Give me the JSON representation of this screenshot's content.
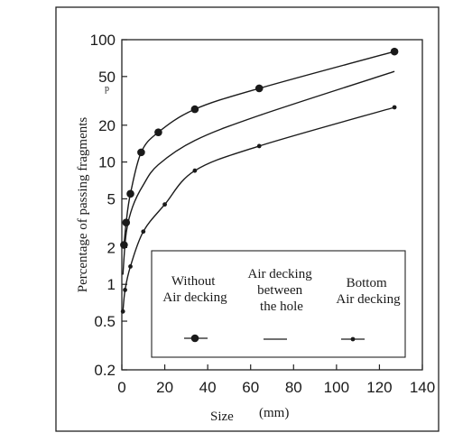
{
  "chart_data": {
    "type": "line",
    "title": "",
    "xlabel": "Size",
    "xunit": "(mm)",
    "ylabel": "Percentage of passing fragments",
    "ylabel_sup": "p",
    "xlim": [
      0,
      140
    ],
    "ylim": [
      0.2,
      100
    ],
    "yscale": "log",
    "grid": false,
    "legend_position": "bottom-right",
    "x_ticks": [
      0,
      20,
      40,
      60,
      80,
      100,
      120,
      140
    ],
    "y_ticks": [
      100,
      50,
      20,
      10,
      5,
      2,
      1,
      0.5,
      0.2
    ],
    "x_tick_labels": [
      "0",
      "20",
      "40",
      "60",
      "80",
      "100",
      "120",
      "140"
    ],
    "y_tick_labels": [
      "100",
      "50",
      "20",
      "10",
      "5",
      "2",
      "1",
      "0.5",
      "0.2"
    ],
    "series": [
      {
        "name": "Without Air decking",
        "name_lines": [
          "Without",
          "Air decking"
        ],
        "marker": "large-dot",
        "x": [
          1,
          2,
          4,
          9,
          17,
          34,
          64,
          127
        ],
        "y": [
          2.1,
          3.2,
          5.5,
          12,
          17.5,
          27,
          40,
          80
        ]
      },
      {
        "name": "Air decking between the hole",
        "name_lines": [
          "Air decking",
          "between",
          "the hole"
        ],
        "marker": "none",
        "x": [
          0.5,
          2,
          5,
          10,
          17,
          34,
          64,
          127
        ],
        "y": [
          1.2,
          2.6,
          4.3,
          6.5,
          9.5,
          15,
          24,
          55
        ]
      },
      {
        "name": "Bottom Air decking",
        "name_lines": [
          "Bottom",
          "Air decking"
        ],
        "marker": "small-dot",
        "x": [
          0.5,
          1.5,
          4,
          10,
          20,
          34,
          64,
          127
        ],
        "y": [
          0.6,
          0.9,
          1.4,
          2.7,
          4.5,
          8.5,
          13.5,
          28
        ]
      }
    ],
    "colors": {
      "line": "#1a1a1a",
      "background": "#ffffff"
    }
  }
}
